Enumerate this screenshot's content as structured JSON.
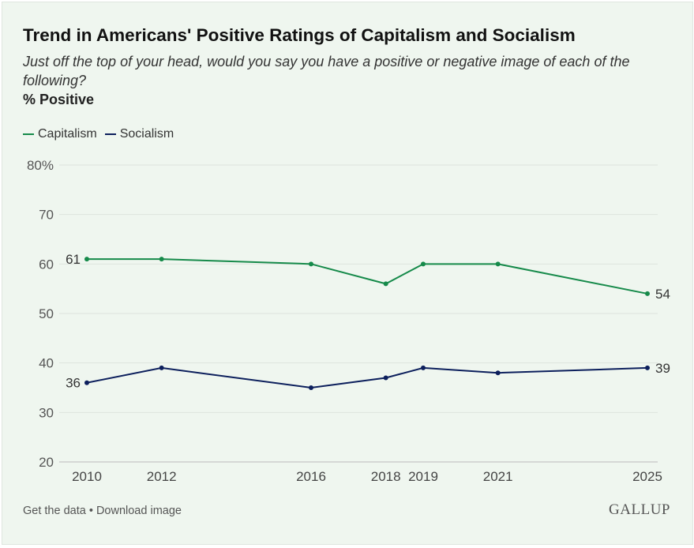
{
  "colors": {
    "capitalism": "#168a4a",
    "socialism": "#0c1f5c",
    "grid": "#dde3dd",
    "axis_text": "#555555"
  },
  "footer": {
    "get_data": "Get the data",
    "separator": " • ",
    "download": "Download image"
  },
  "logo": "GALLUP",
  "chart_data": {
    "type": "line",
    "title": "Trend in Americans' Positive Ratings of Capitalism and Socialism",
    "subtitle": "Just off the top of your head, would you say you have a positive or negative image of each of the following?",
    "ylabel": "% Positive",
    "x": [
      2010,
      2012,
      2016,
      2018,
      2019,
      2021,
      2025
    ],
    "xtick_labels": [
      "2010",
      "2012",
      "2016",
      "2018",
      "2019",
      "2021",
      "2025"
    ],
    "ylim": [
      20,
      80
    ],
    "yticks": [
      20,
      30,
      40,
      50,
      60,
      70,
      80
    ],
    "ytick_labels": [
      "20",
      "30",
      "40",
      "50",
      "60",
      "70",
      "80%"
    ],
    "grid": true,
    "legend_position": "top-left",
    "series": [
      {
        "name": "Capitalism",
        "values": [
          61,
          61,
          60,
          56,
          60,
          60,
          54
        ],
        "labels": [
          "61",
          "54"
        ]
      },
      {
        "name": "Socialism",
        "values": [
          36,
          39,
          35,
          37,
          39,
          38,
          39
        ],
        "labels": [
          "36",
          "39"
        ]
      }
    ]
  }
}
